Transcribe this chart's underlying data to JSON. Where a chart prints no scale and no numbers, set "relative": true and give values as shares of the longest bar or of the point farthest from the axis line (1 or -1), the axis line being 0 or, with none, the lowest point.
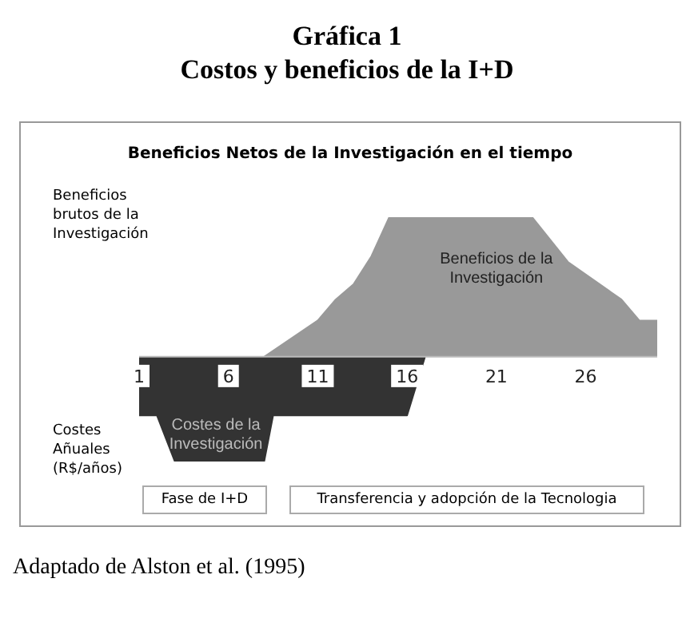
{
  "chart_data": {
    "type": "area",
    "title": "Gráfica 1",
    "subtitle": "Costos y beneficios de la I+D",
    "ylabel": "Beneficios brutos de la Investigación",
    "relative": true,
    "xlim": [
      1,
      30
    ],
    "xticks": [
      1,
      6,
      11,
      16,
      21,
      26
    ],
    "series": [
      {
        "color": "#999999",
        "x": [
          8,
          11,
          12,
          13,
          14,
          15,
          23,
          25,
          28,
          29,
          30,
          30
        ],
        "values": [
          0,
          0.26,
          0.41,
          0.52,
          0.72,
          1,
          1,
          0.68,
          0.41,
          0.26,
          0.26,
          0
        ]
      },
      {
        "color": "#333333",
        "x": [
          1,
          1,
          2,
          3,
          8,
          8.5,
          16,
          17
        ],
        "values": [
          0,
          -0.42,
          -0.42,
          -0.75,
          -0.75,
          -0.42,
          -0.42,
          0
        ]
      }
    ],
    "annotations": [
      "Beneficios Netos de la Investigación en el tiempo",
      "Beneficios de la Investigación",
      "Costes de la Investigación",
      "Costes Añuales (R$/años)",
      "Fase de I+D",
      "Transferencia y adopción de la Tecnologia",
      "Adaptado de Alston et al. (1995)"
    ]
  }
}
